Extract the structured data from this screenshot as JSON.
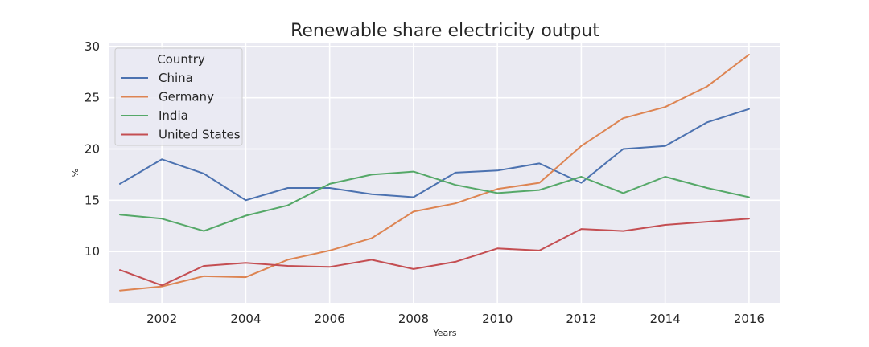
{
  "chart_data": {
    "type": "line",
    "title": "Renewable share electricity output",
    "xlabel": "Years",
    "ylabel": "%",
    "x": [
      2001,
      2002,
      2003,
      2004,
      2005,
      2006,
      2007,
      2008,
      2009,
      2010,
      2011,
      2012,
      2013,
      2014,
      2015,
      2016
    ],
    "xlim": [
      2000.75,
      2016.75
    ],
    "ylim": [
      5.0,
      30.3
    ],
    "xticks": [
      2002,
      2004,
      2006,
      2008,
      2010,
      2012,
      2014,
      2016
    ],
    "yticks": [
      10,
      15,
      20,
      25,
      30
    ],
    "grid": true,
    "legend": {
      "title": "Country",
      "placement": "top-left"
    },
    "series": [
      {
        "name": "China",
        "color": "#4c72b0",
        "values": [
          16.6,
          19.0,
          17.6,
          15.0,
          16.2,
          16.2,
          15.6,
          15.3,
          17.7,
          17.9,
          18.6,
          16.7,
          20.0,
          20.3,
          22.6,
          23.9
        ]
      },
      {
        "name": "Germany",
        "color": "#dd8452",
        "values": [
          6.2,
          6.6,
          7.6,
          7.5,
          9.2,
          10.1,
          11.3,
          13.9,
          14.7,
          16.1,
          16.7,
          20.3,
          23.0,
          24.1,
          26.1,
          29.2
        ]
      },
      {
        "name": "India",
        "color": "#55a868",
        "values": [
          13.6,
          13.2,
          12.0,
          13.5,
          14.5,
          16.6,
          17.5,
          17.8,
          16.5,
          15.7,
          16.0,
          17.3,
          15.7,
          17.3,
          16.2,
          15.3
        ]
      },
      {
        "name": "United States",
        "color": "#c44e52",
        "values": [
          8.2,
          6.7,
          8.6,
          8.9,
          8.6,
          8.5,
          9.2,
          8.3,
          9.0,
          10.3,
          10.1,
          12.2,
          12.0,
          12.6,
          12.9,
          13.2
        ]
      }
    ]
  }
}
